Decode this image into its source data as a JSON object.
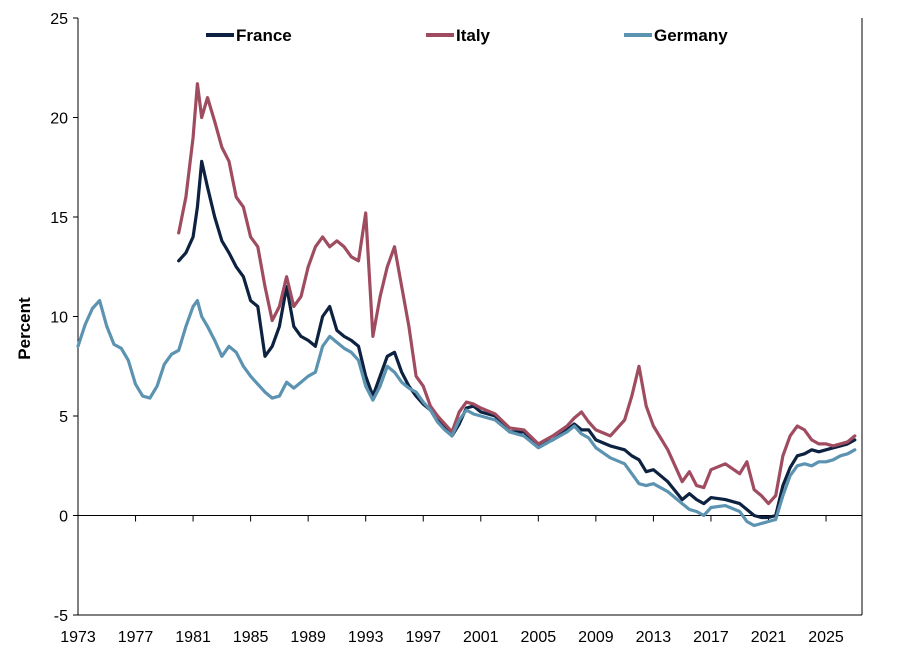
{
  "chart_data": {
    "type": "line",
    "title": "",
    "xlabel": "",
    "ylabel": "Percent",
    "xlim": [
      1973,
      2027.5
    ],
    "ylim": [
      -5,
      25
    ],
    "x_ticks": [
      "1973",
      "1977",
      "1981",
      "1985",
      "1989",
      "1993",
      "1997",
      "2001",
      "2005",
      "2009",
      "2013",
      "2017",
      "2021",
      "2025"
    ],
    "y_ticks": [
      "25",
      "20",
      "15",
      "10",
      "5",
      "0",
      "-5"
    ],
    "grid": false,
    "legend_position": "top",
    "series": [
      {
        "name": "France",
        "color": "#0d2240",
        "x": [
          1980.0,
          1980.5,
          1981.0,
          1981.3,
          1981.6,
          1982.0,
          1982.5,
          1983.0,
          1983.5,
          1984.0,
          1984.5,
          1985.0,
          1985.5,
          1986.0,
          1986.5,
          1987.0,
          1987.5,
          1988.0,
          1988.5,
          1989.0,
          1989.5,
          1990.0,
          1990.5,
          1991.0,
          1991.5,
          1992.0,
          1992.5,
          1993.0,
          1993.5,
          1994.0,
          1994.5,
          1995.0,
          1995.5,
          1996.0,
          1996.5,
          1997.0,
          1997.5,
          1998.0,
          1998.5,
          1999.0,
          1999.5,
          2000.0,
          2000.5,
          2001.0,
          2002.0,
          2003.0,
          2004.0,
          2005.0,
          2006.0,
          2007.0,
          2007.5,
          2008.0,
          2008.5,
          2009.0,
          2010.0,
          2011.0,
          2011.5,
          2012.0,
          2012.5,
          2013.0,
          2014.0,
          2015.0,
          2015.5,
          2016.0,
          2016.5,
          2017.0,
          2018.0,
          2019.0,
          2019.5,
          2020.0,
          2020.5,
          2021.0,
          2021.5,
          2022.0,
          2022.5,
          2023.0,
          2023.5,
          2024.0,
          2024.5,
          2025.0,
          2025.5,
          2026.0,
          2026.5,
          2027.0
        ],
        "y": [
          12.8,
          13.2,
          14.0,
          15.5,
          17.8,
          16.5,
          15.0,
          13.8,
          13.2,
          12.5,
          12.0,
          10.8,
          10.5,
          8.0,
          8.5,
          9.5,
          11.5,
          9.5,
          9.0,
          8.8,
          8.5,
          10.0,
          10.5,
          9.3,
          9.0,
          8.8,
          8.5,
          7.0,
          6.0,
          7.0,
          8.0,
          8.2,
          7.2,
          6.5,
          6.0,
          5.6,
          5.3,
          4.8,
          4.5,
          4.0,
          4.6,
          5.4,
          5.5,
          5.2,
          5.0,
          4.2,
          4.2,
          3.5,
          3.8,
          4.3,
          4.6,
          4.3,
          4.3,
          3.8,
          3.5,
          3.3,
          3.0,
          2.8,
          2.2,
          2.3,
          1.7,
          0.8,
          1.1,
          0.8,
          0.6,
          0.9,
          0.8,
          0.6,
          0.3,
          0.0,
          -0.1,
          -0.1,
          0.0,
          1.5,
          2.4,
          3.0,
          3.1,
          3.3,
          3.2,
          3.3,
          3.4,
          3.5,
          3.6,
          3.8
        ]
      },
      {
        "name": "Italy",
        "color": "#a04c60",
        "x": [
          1980.0,
          1980.5,
          1981.0,
          1981.3,
          1981.6,
          1982.0,
          1982.5,
          1983.0,
          1983.5,
          1984.0,
          1984.5,
          1985.0,
          1985.5,
          1986.0,
          1986.5,
          1987.0,
          1987.5,
          1988.0,
          1988.5,
          1989.0,
          1989.5,
          1990.0,
          1990.5,
          1991.0,
          1991.5,
          1992.0,
          1992.5,
          1993.0,
          1993.5,
          1994.0,
          1994.5,
          1995.0,
          1995.5,
          1996.0,
          1996.5,
          1997.0,
          1997.5,
          1998.0,
          1998.5,
          1999.0,
          1999.5,
          2000.0,
          2000.5,
          2001.0,
          2002.0,
          2003.0,
          2004.0,
          2005.0,
          2006.0,
          2007.0,
          2007.5,
          2008.0,
          2008.5,
          2009.0,
          2010.0,
          2011.0,
          2011.5,
          2012.0,
          2012.5,
          2013.0,
          2014.0,
          2015.0,
          2015.5,
          2016.0,
          2016.5,
          2017.0,
          2018.0,
          2019.0,
          2019.5,
          2020.0,
          2020.5,
          2021.0,
          2021.5,
          2022.0,
          2022.5,
          2023.0,
          2023.5,
          2024.0,
          2024.5,
          2025.0,
          2025.5,
          2026.0,
          2026.5,
          2027.0
        ],
        "y": [
          14.2,
          16.0,
          19.0,
          21.7,
          20.0,
          21.0,
          19.8,
          18.5,
          17.8,
          16.0,
          15.5,
          14.0,
          13.5,
          11.5,
          9.8,
          10.5,
          12.0,
          10.5,
          11.0,
          12.5,
          13.5,
          14.0,
          13.5,
          13.8,
          13.5,
          13.0,
          12.8,
          15.2,
          9.0,
          11.0,
          12.5,
          13.5,
          11.5,
          9.5,
          7.0,
          6.5,
          5.5,
          5.0,
          4.6,
          4.2,
          5.2,
          5.7,
          5.6,
          5.4,
          5.1,
          4.4,
          4.3,
          3.6,
          4.0,
          4.5,
          4.9,
          5.2,
          4.7,
          4.3,
          4.0,
          4.8,
          6.0,
          7.5,
          5.5,
          4.5,
          3.3,
          1.7,
          2.2,
          1.5,
          1.4,
          2.3,
          2.6,
          2.1,
          2.7,
          1.3,
          1.0,
          0.6,
          1.0,
          3.0,
          4.0,
          4.5,
          4.3,
          3.8,
          3.6,
          3.6,
          3.5,
          3.6,
          3.7,
          4.0
        ]
      },
      {
        "name": "Germany",
        "color": "#5b93b1",
        "x": [
          1973.0,
          1973.5,
          1974.0,
          1974.5,
          1975.0,
          1975.5,
          1976.0,
          1976.5,
          1977.0,
          1977.5,
          1978.0,
          1978.5,
          1979.0,
          1979.5,
          1980.0,
          1980.5,
          1981.0,
          1981.3,
          1981.6,
          1982.0,
          1982.5,
          1983.0,
          1983.5,
          1984.0,
          1984.5,
          1985.0,
          1985.5,
          1986.0,
          1986.5,
          1987.0,
          1987.5,
          1988.0,
          1988.5,
          1989.0,
          1989.5,
          1990.0,
          1990.5,
          1991.0,
          1991.5,
          1992.0,
          1992.5,
          1993.0,
          1993.5,
          1994.0,
          1994.5,
          1995.0,
          1995.5,
          1996.0,
          1996.5,
          1997.0,
          1997.5,
          1998.0,
          1998.5,
          1999.0,
          1999.5,
          2000.0,
          2000.5,
          2001.0,
          2002.0,
          2003.0,
          2004.0,
          2005.0,
          2006.0,
          2007.0,
          2007.5,
          2008.0,
          2008.5,
          2009.0,
          2010.0,
          2011.0,
          2011.5,
          2012.0,
          2012.5,
          2013.0,
          2014.0,
          2015.0,
          2015.5,
          2016.0,
          2016.5,
          2017.0,
          2018.0,
          2019.0,
          2019.5,
          2020.0,
          2020.5,
          2021.0,
          2021.5,
          2022.0,
          2022.5,
          2023.0,
          2023.5,
          2024.0,
          2024.5,
          2025.0,
          2025.5,
          2026.0,
          2026.5,
          2027.0
        ],
        "y": [
          8.5,
          9.6,
          10.4,
          10.8,
          9.5,
          8.6,
          8.4,
          7.8,
          6.6,
          6.0,
          5.9,
          6.5,
          7.6,
          8.1,
          8.3,
          9.5,
          10.5,
          10.8,
          10.0,
          9.5,
          8.8,
          8.0,
          8.5,
          8.2,
          7.5,
          7.0,
          6.6,
          6.2,
          5.9,
          6.0,
          6.7,
          6.4,
          6.7,
          7.0,
          7.2,
          8.5,
          9.0,
          8.7,
          8.4,
          8.2,
          7.8,
          6.5,
          5.8,
          6.5,
          7.5,
          7.2,
          6.7,
          6.4,
          6.2,
          5.7,
          5.3,
          4.7,
          4.3,
          4.0,
          4.8,
          5.3,
          5.1,
          5.0,
          4.8,
          4.2,
          4.0,
          3.4,
          3.8,
          4.2,
          4.5,
          4.1,
          3.9,
          3.4,
          2.9,
          2.6,
          2.1,
          1.6,
          1.5,
          1.6,
          1.2,
          0.6,
          0.3,
          0.2,
          0.0,
          0.4,
          0.5,
          0.2,
          -0.3,
          -0.5,
          -0.4,
          -0.3,
          -0.2,
          1.0,
          2.0,
          2.5,
          2.6,
          2.5,
          2.7,
          2.7,
          2.8,
          3.0,
          3.1,
          3.3
        ]
      }
    ]
  }
}
